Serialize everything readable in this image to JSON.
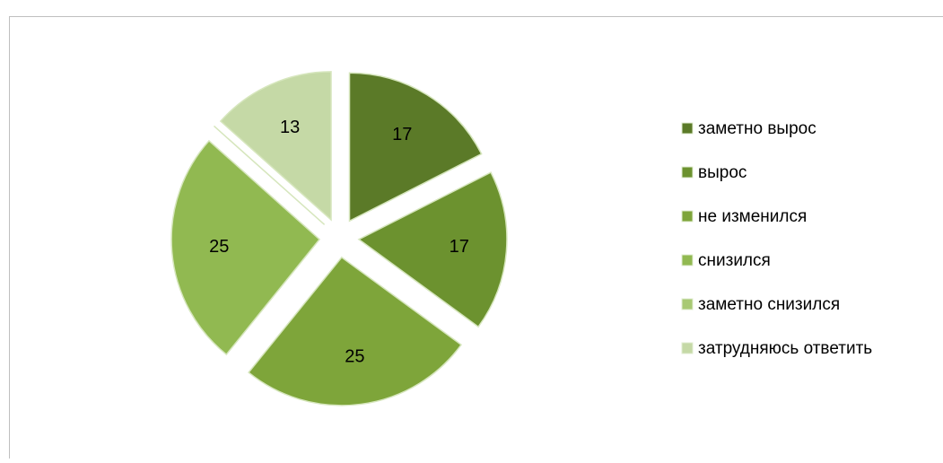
{
  "chart_data": {
    "type": "pie",
    "categories": [
      "заметно вырос",
      "вырос",
      "не изменился",
      "снизился",
      "заметно снизился",
      "затрудняюсь ответить"
    ],
    "values": [
      17,
      17,
      25,
      25,
      0,
      13
    ],
    "colors": [
      "#5b7a28",
      "#6c922f",
      "#7ea53a",
      "#91b951",
      "#a8c973",
      "#c5d9a6"
    ],
    "legend": "right"
  }
}
